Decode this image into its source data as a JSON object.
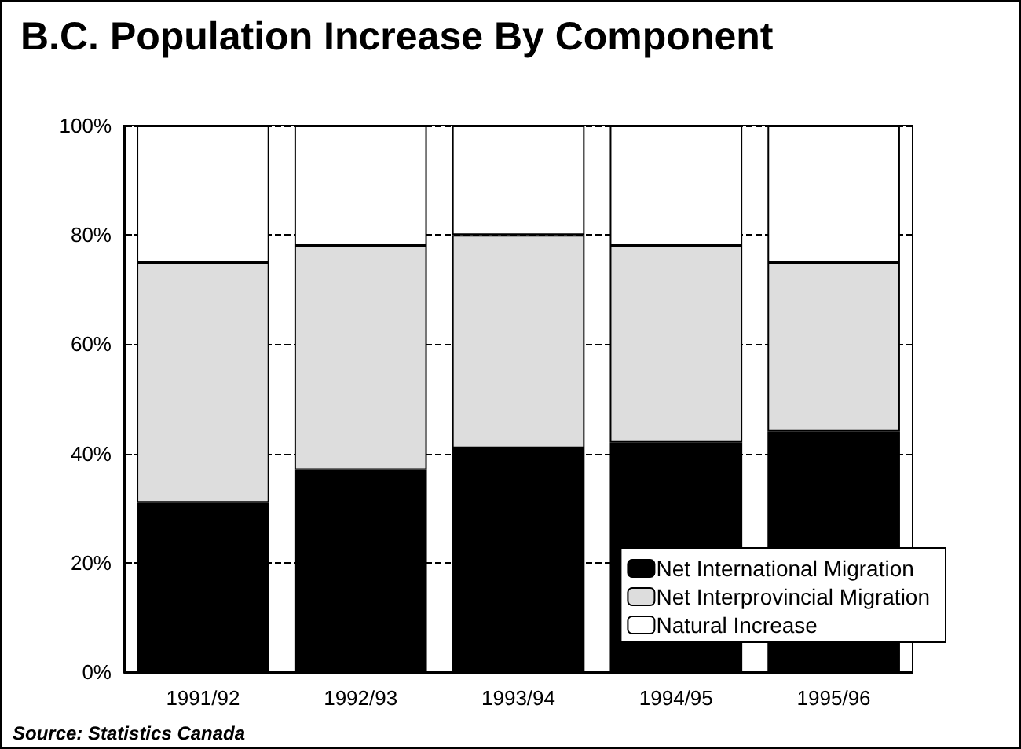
{
  "chart_data": {
    "type": "bar",
    "title": "B.C. Population Increase By Component",
    "categories": [
      "1991/92",
      "1992/93",
      "1993/94",
      "1994/95",
      "1995/96"
    ],
    "stacked": true,
    "series": [
      {
        "name": "Net International Migration",
        "color": "#000000",
        "values": [
          31,
          37,
          41,
          42,
          44
        ]
      },
      {
        "name": "Net Interprovincial Migration",
        "color": "#dddddd",
        "values": [
          44,
          41,
          39,
          36,
          31
        ]
      },
      {
        "name": "Natural Increase",
        "color": "#ffffff",
        "values": [
          25,
          22,
          20,
          22,
          25
        ]
      }
    ],
    "ylim": [
      0,
      100
    ],
    "yticks": [
      {
        "value": 0,
        "label": "0%"
      },
      {
        "value": 20,
        "label": "20%"
      },
      {
        "value": 40,
        "label": "40%"
      },
      {
        "value": 60,
        "label": "60%"
      },
      {
        "value": 80,
        "label": "80%"
      },
      {
        "value": 100,
        "label": "100%"
      }
    ],
    "grid": "y",
    "legend": "bottom right",
    "annotations": [
      "Source: Statistics Canada"
    ]
  }
}
